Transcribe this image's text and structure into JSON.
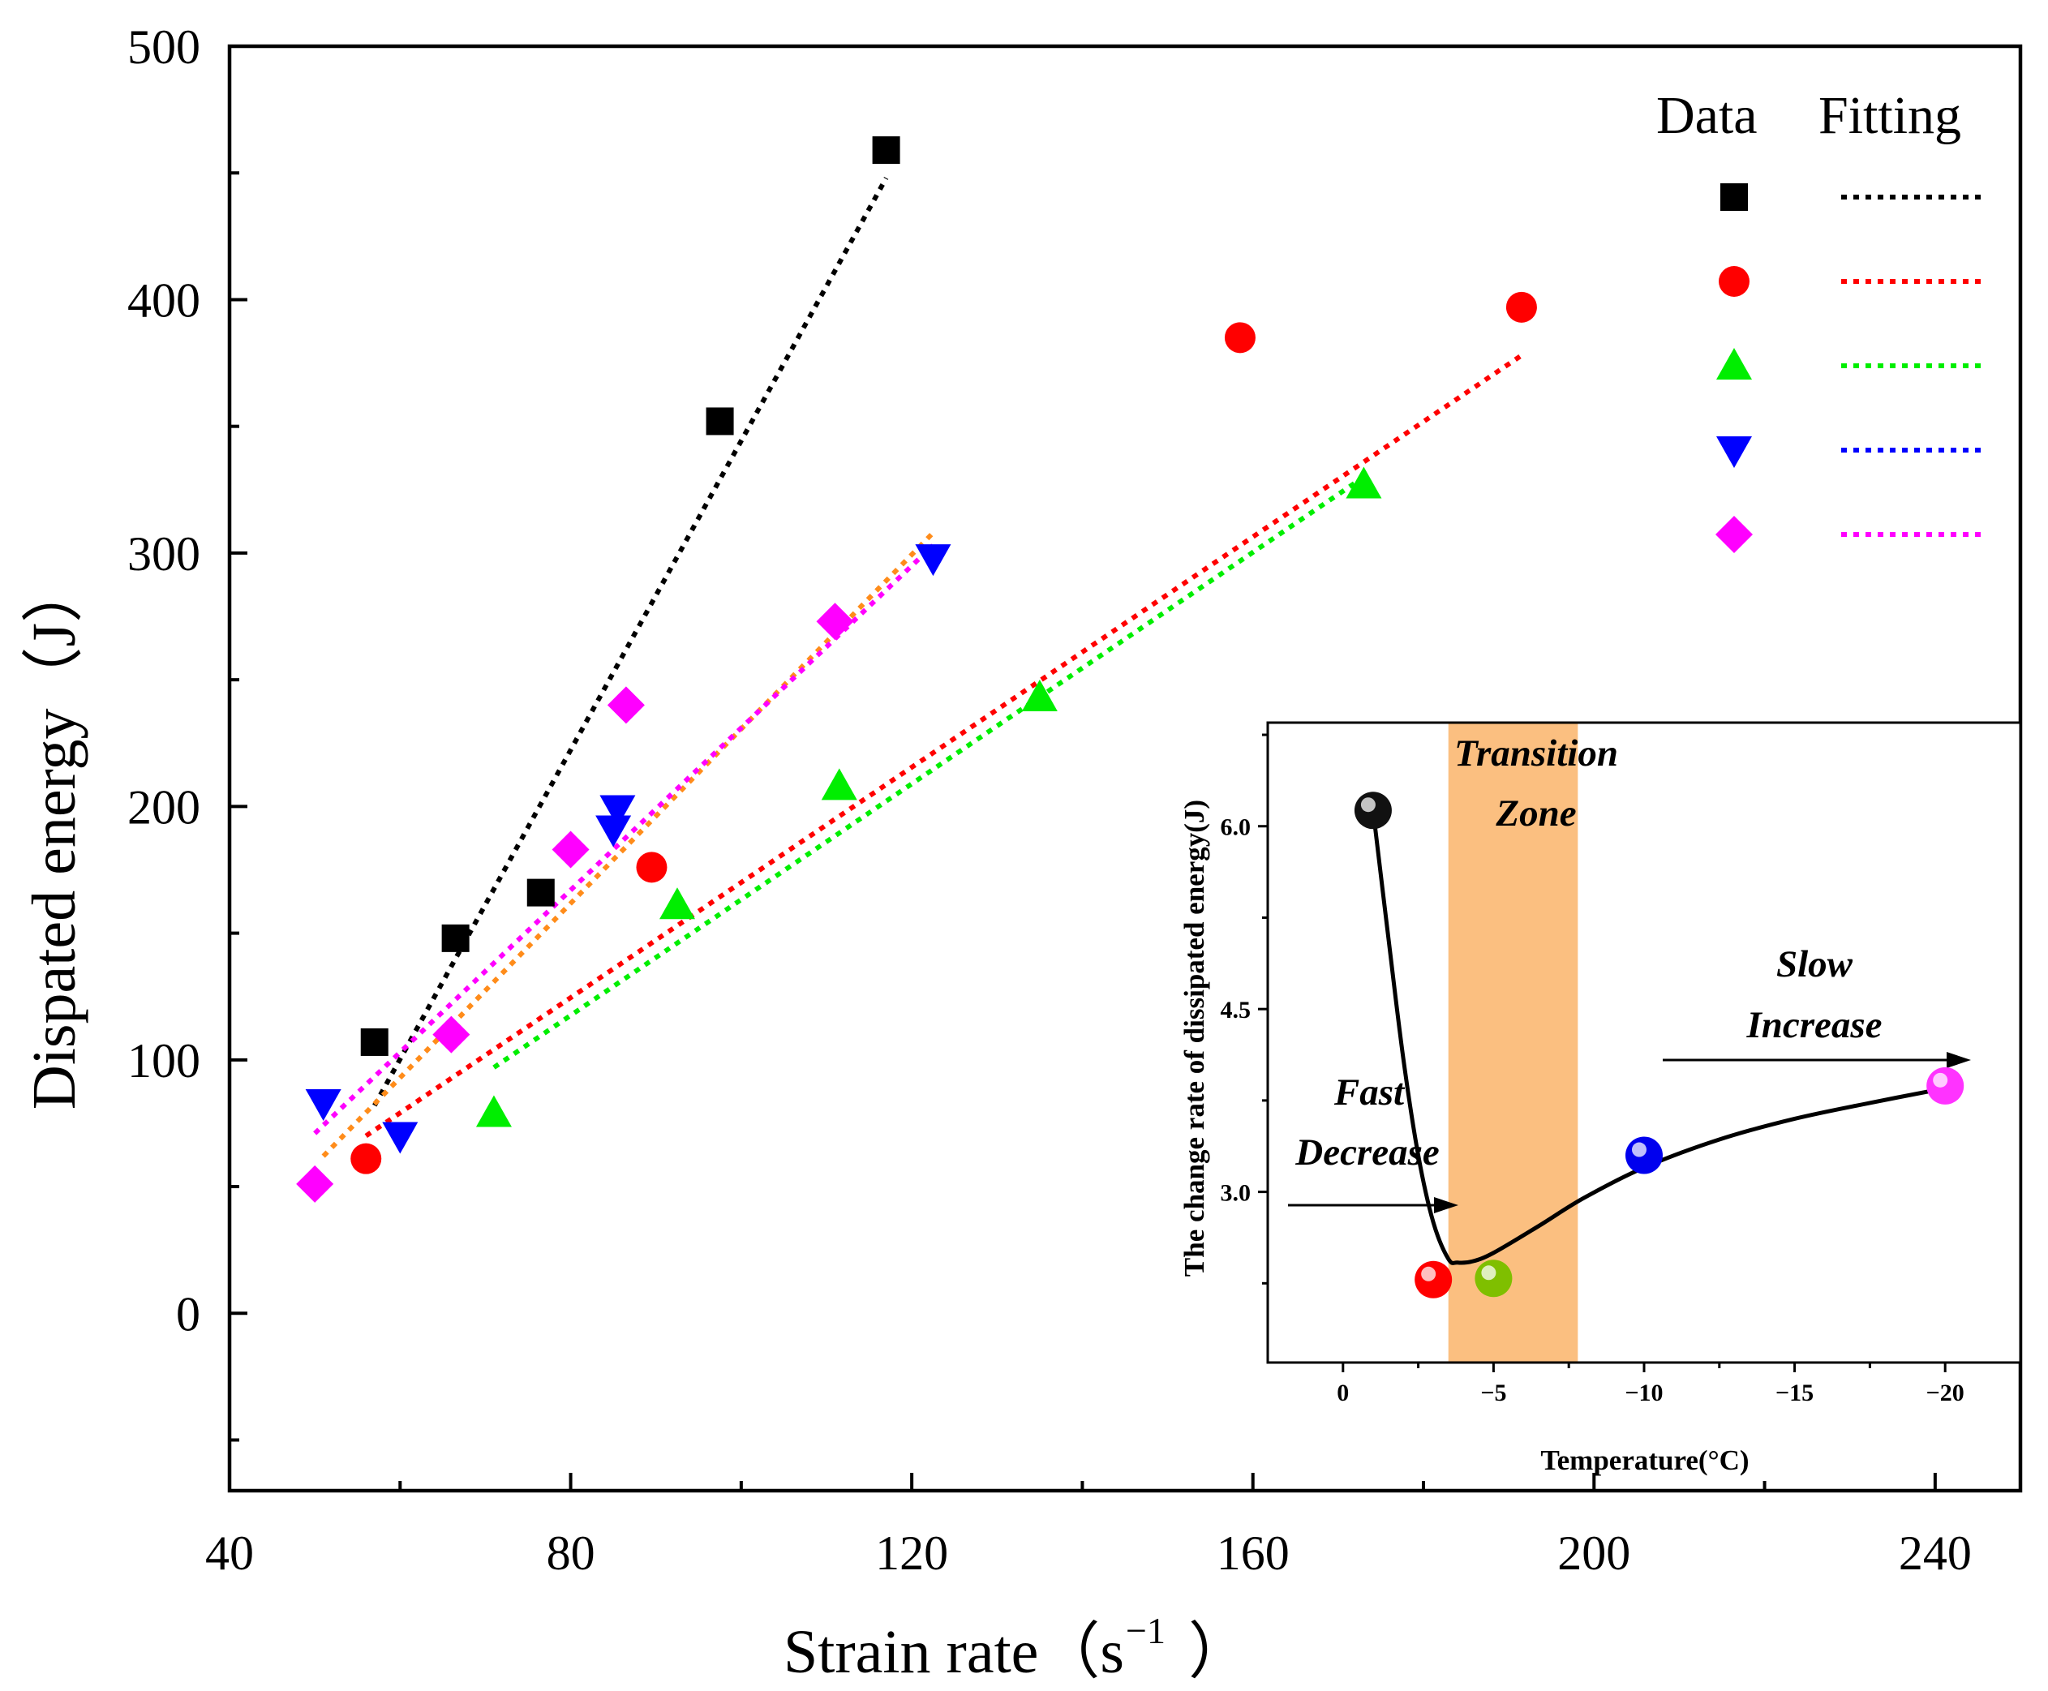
{
  "chart_data": [
    {
      "type": "scatter",
      "xlabel": "Strain rate（s",
      "xlabel_sup": "−1",
      "xlabel_close": "）",
      "ylabel": "Dispated energy（J）",
      "xlim": [
        40,
        250
      ],
      "ylim": [
        -70,
        500
      ],
      "x_ticks": [
        40,
        80,
        120,
        160,
        200,
        240
      ],
      "y_ticks": [
        0,
        100,
        200,
        300,
        400,
        500
      ],
      "grid": false,
      "legend": {
        "position": "top-right",
        "headers": [
          "Data",
          "Fitting"
        ],
        "entries": [
          {
            "color": "#000000",
            "marker": "square"
          },
          {
            "color": "#ff0000",
            "marker": "circle"
          },
          {
            "color": "#00ee00",
            "marker": "triangle-up"
          },
          {
            "color": "#0000ff",
            "marker": "triangle-down"
          },
          {
            "color": "#ff00ff",
            "marker": "diamond"
          }
        ]
      },
      "series": [
        {
          "color": "#000000",
          "marker": "square",
          "x": [
            57,
            66.5,
            76.5,
            97.5,
            117
          ],
          "y": [
            107,
            148,
            166,
            352,
            459
          ],
          "fit": {
            "x": [
              57,
              117
            ],
            "y": [
              82,
              448
            ],
            "color": "#000000"
          }
        },
        {
          "color": "#ff0000",
          "marker": "circle",
          "x": [
            56,
            89.5,
            158.5,
            191.5
          ],
          "y": [
            61,
            176,
            385,
            397
          ],
          "fit": {
            "x": [
              56,
              191.5
            ],
            "y": [
              70,
              378
            ],
            "color": "#ff0000"
          }
        },
        {
          "color": "#00ee00",
          "marker": "triangle-up",
          "x": [
            71,
            92.5,
            111.5,
            135,
            173
          ],
          "y": [
            79,
            161,
            208,
            243,
            327
          ],
          "fit": {
            "x": [
              71,
              173
            ],
            "y": [
              97,
              330
            ],
            "color": "#00ee00"
          }
        },
        {
          "color": "#0000ff",
          "marker": "triangle-down",
          "x": [
            51,
            60,
            85,
            85.5,
            122.5
          ],
          "y": [
            83,
            70,
            191,
            199,
            298
          ],
          "fit": {
            "x": [
              51,
              122.5
            ],
            "y": [
              62,
              308
            ],
            "color": "#ff8c1a"
          }
        },
        {
          "color": "#ff00ff",
          "marker": "diamond",
          "x": [
            50,
            66,
            80,
            86.5,
            111
          ],
          "y": [
            51,
            110,
            183,
            240,
            273
          ],
          "fit": {
            "x": [
              50,
              122.5
            ],
            "y": [
              71,
              303
            ],
            "color": "#ff00ff"
          }
        }
      ]
    },
    {
      "type": "line",
      "inset": true,
      "xlabel": "Temperature(°C)",
      "ylabel": "The change rate of dissipated energy(J)",
      "xlim": [
        2.5,
        -22.5
      ],
      "ylim": [
        1.6,
        6.85
      ],
      "x_ticks": [
        0,
        -5,
        -10,
        -15,
        -20
      ],
      "x_tick_labels": [
        "0",
        "−5",
        "−10",
        "−15",
        "−20"
      ],
      "y_ticks": [
        3.0,
        4.5,
        6.0
      ],
      "y_tick_labels": [
        "3.0",
        "4.5",
        "6.0"
      ],
      "transition_zone": {
        "x_range": [
          -3.5,
          -7.8
        ],
        "color": "#fbbf80"
      },
      "points": [
        {
          "x": -1,
          "y": 6.13,
          "color": "#111111"
        },
        {
          "x": -3,
          "y": 2.28,
          "color": "#ff0000"
        },
        {
          "x": -5,
          "y": 2.29,
          "color": "#7fbf00"
        },
        {
          "x": -10,
          "y": 3.3,
          "color": "#0000ee"
        },
        {
          "x": -20,
          "y": 3.87,
          "color": "#ff33ff"
        }
      ],
      "curve": {
        "x": [
          -1,
          -1.5,
          -2,
          -2.5,
          -3,
          -3.5,
          -3.8,
          -4.3,
          -5,
          -6.5,
          -8,
          -10,
          -12.5,
          -15,
          -17.5,
          -20
        ],
        "y": [
          6.13,
          5.1,
          4.1,
          3.3,
          2.75,
          2.45,
          2.42,
          2.43,
          2.5,
          2.72,
          2.95,
          3.2,
          3.43,
          3.6,
          3.73,
          3.85
        ]
      },
      "annotations": [
        {
          "text": "Transition"
        },
        {
          "text": "Zone"
        },
        {
          "text": "Slow"
        },
        {
          "text": "Increase"
        },
        {
          "text": "Fast"
        },
        {
          "text": "Decrease"
        }
      ]
    }
  ]
}
